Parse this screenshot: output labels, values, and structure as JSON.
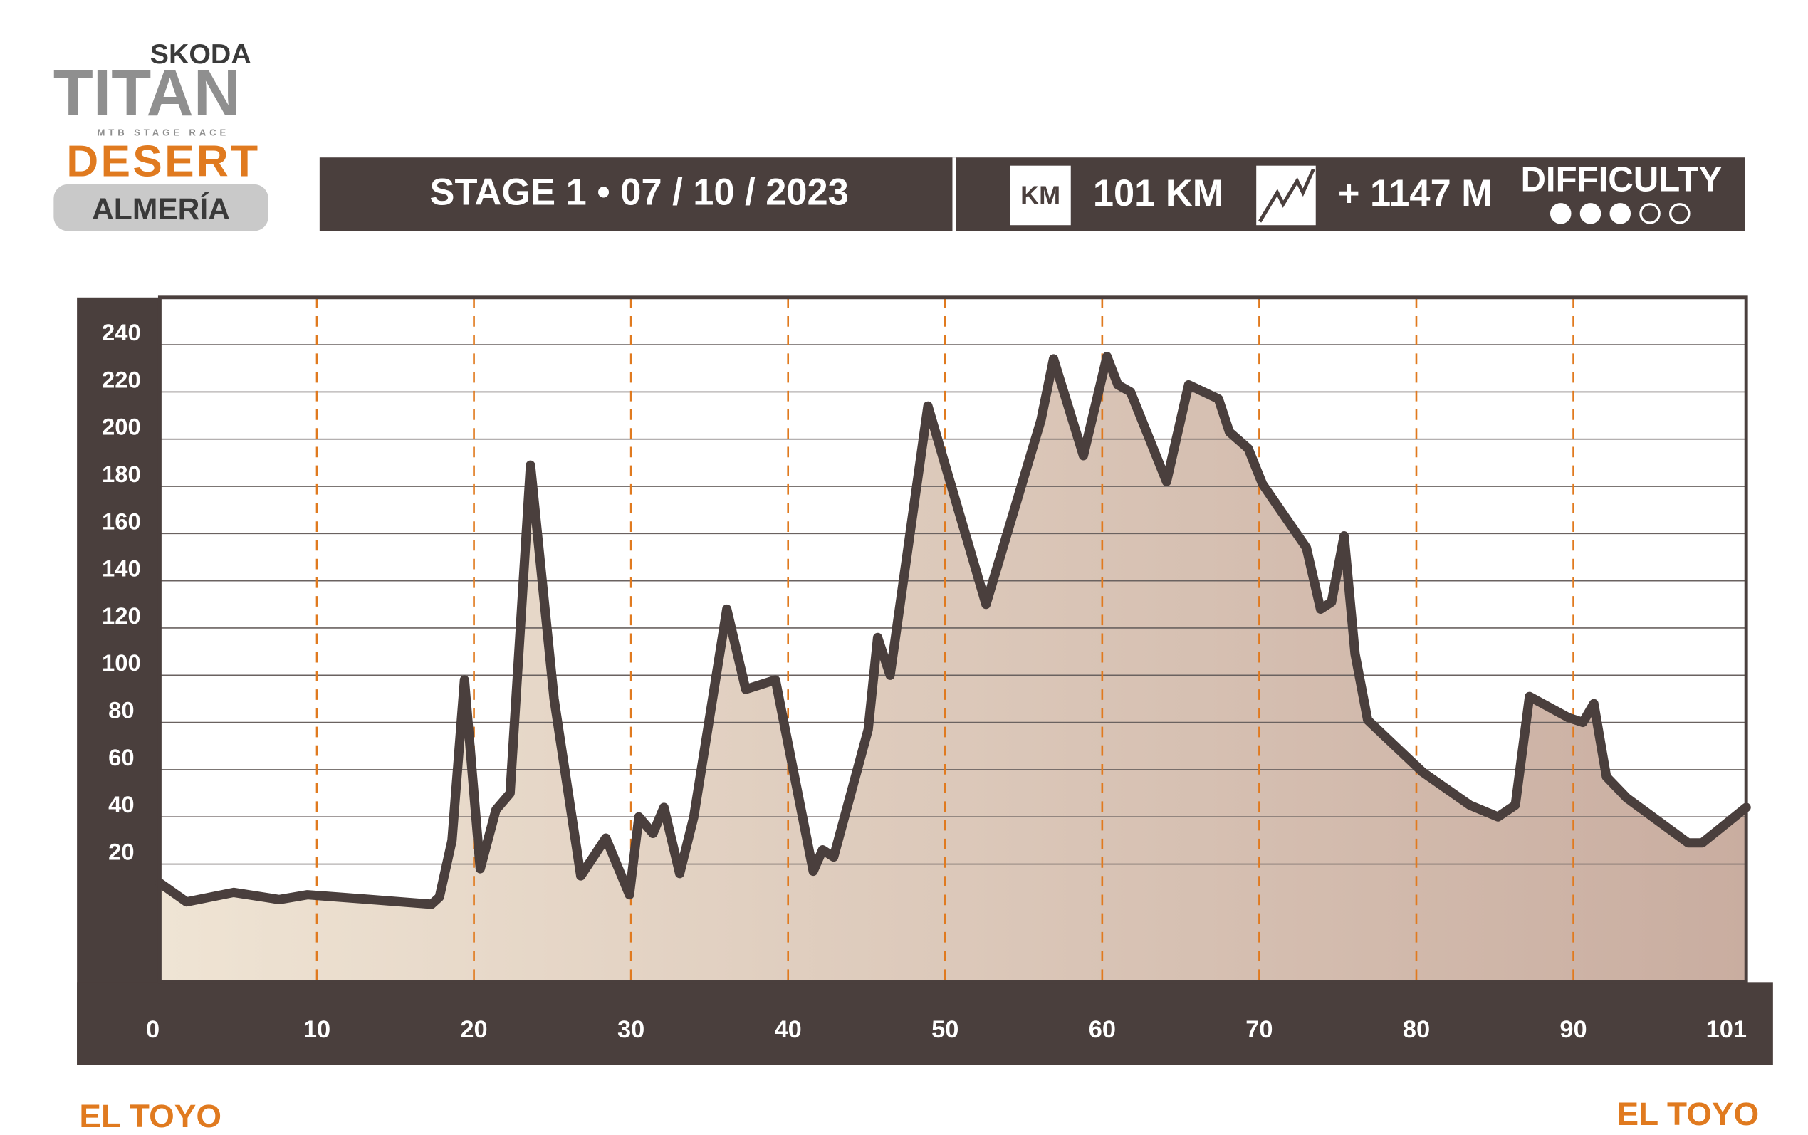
{
  "logo": {
    "brand": "SKODA",
    "name": "TITAN",
    "tagline": "MTB STAGE RACE",
    "edition": "DESERT",
    "place": "ALMERÍA"
  },
  "header": {
    "stage": "STAGE 1 • 07 / 10 / 2023",
    "km_icon": "KM",
    "distance": "101 KM",
    "climb": "+ 1147 M",
    "difficulty_label": "DIFFICULTY",
    "difficulty": 3,
    "difficulty_max": 5
  },
  "footer": {
    "start": "EL TOYO",
    "finish": "EL TOYO"
  },
  "chart_data": {
    "type": "area",
    "x": [
      0,
      1.7,
      4.7,
      7.6,
      9.4,
      11.4,
      17.3,
      17.8,
      18.6,
      19.4,
      20.4,
      21.4,
      22.3,
      23.6,
      25.1,
      26.8,
      28.4,
      29.9,
      30.5,
      31.4,
      32.1,
      33.1,
      34.0,
      36.1,
      37.3,
      39.2,
      41.6,
      42.2,
      42.9,
      45.1,
      45.7,
      46.5,
      48.9,
      52.6,
      56.1,
      56.9,
      58.8,
      60.3,
      61.0,
      61.8,
      64.1,
      65.5,
      67.4,
      68.1,
      69.3,
      70.2,
      73.0,
      73.9,
      74.6,
      75.4,
      76.1,
      76.9,
      80.4,
      83.4,
      85.2,
      86.3,
      87.2,
      89.7,
      90.6,
      91.3,
      92.1,
      93.4,
      97.3,
      98.2,
      101
    ],
    "values": [
      12,
      4,
      8,
      5,
      7,
      6,
      3,
      6,
      30,
      98,
      18,
      43,
      50,
      189,
      90,
      15,
      31,
      7,
      40,
      33,
      44,
      16,
      40,
      128,
      94,
      98,
      17,
      26,
      23,
      77,
      116,
      100,
      214,
      130,
      208,
      234,
      193,
      235,
      223,
      220,
      182,
      223,
      217,
      203,
      196,
      181,
      154,
      128,
      131,
      159,
      109,
      81,
      59,
      45,
      40,
      45,
      91,
      82,
      80,
      88,
      57,
      48,
      29,
      29,
      44
    ],
    "xlim": [
      0,
      101
    ],
    "ylim": [
      -30,
      260
    ],
    "xticks": [
      0,
      10,
      20,
      30,
      40,
      50,
      60,
      70,
      80,
      90,
      101
    ],
    "yticks": [
      20,
      40,
      60,
      80,
      100,
      120,
      140,
      160,
      180,
      200,
      220,
      240
    ],
    "color": "#4a3f3d",
    "fill_colors": [
      "#efe4d4",
      "#c9ada0"
    ],
    "xgrid_color": "#e07a1f",
    "ygrid_color": "#6a6260",
    "grid": true
  }
}
